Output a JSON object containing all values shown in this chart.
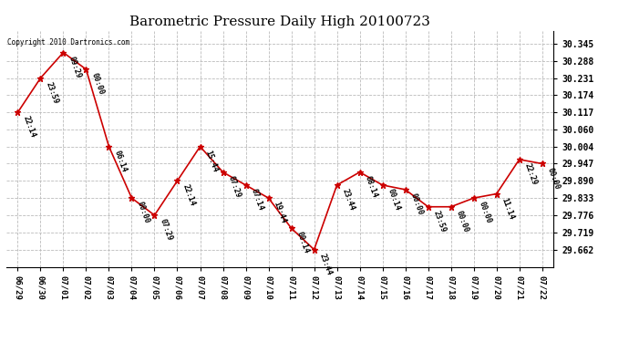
{
  "title": "Barometric Pressure Daily High 20100723",
  "copyright": "Copyright 2010 Dartronics.com",
  "x_labels": [
    "06/29",
    "06/30",
    "07/01",
    "07/02",
    "07/03",
    "07/04",
    "07/05",
    "07/06",
    "07/07",
    "07/08",
    "07/09",
    "07/10",
    "07/11",
    "07/12",
    "07/13",
    "07/14",
    "07/15",
    "07/16",
    "07/17",
    "07/18",
    "07/19",
    "07/20",
    "07/21",
    "07/22"
  ],
  "y_values": [
    30.117,
    30.231,
    30.316,
    30.26,
    30.004,
    29.833,
    29.776,
    29.89,
    30.004,
    29.919,
    29.876,
    29.833,
    29.733,
    29.662,
    29.876,
    29.919,
    29.876,
    29.861,
    29.804,
    29.804,
    29.833,
    29.847,
    29.961,
    29.947
  ],
  "time_labels": [
    "22:14",
    "23:59",
    "09:29",
    "00:00",
    "06:14",
    "00:00",
    "07:29",
    "22:14",
    "15:44",
    "07:29",
    "07:14",
    "19:44",
    "00:14",
    "23:44",
    "23:44",
    "08:14",
    "00:14",
    "00:00",
    "23:59",
    "00:00",
    "00:00",
    "11:14",
    "22:29",
    "00:00"
  ],
  "y_ticks": [
    29.662,
    29.719,
    29.776,
    29.833,
    29.89,
    29.947,
    30.004,
    30.06,
    30.117,
    30.174,
    30.231,
    30.288,
    30.345
  ],
  "y_min": 29.605,
  "y_max": 30.388,
  "line_color": "#cc0000",
  "marker_color": "#cc0000",
  "bg_color": "#ffffff",
  "grid_color": "#bbbbbb",
  "text_color": "#000000",
  "title_fontsize": 11,
  "annotation_fontsize": 6,
  "tick_fontsize": 7,
  "xlabel_fontsize": 6.5,
  "copyright_fontsize": 5.5
}
